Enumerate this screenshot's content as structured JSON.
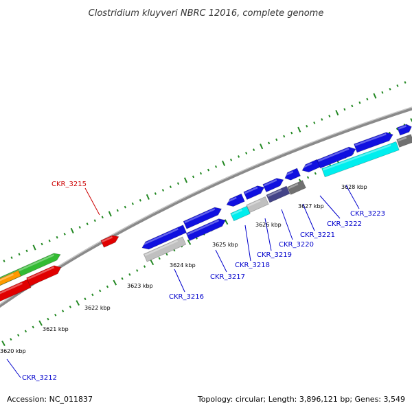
{
  "title": "Clostridium kluyveri NBRC 12016, complete genome",
  "footer": {
    "accession": "Accession: NC_011837",
    "summary": "Topology: circular; Length: 3,896,121 bp; Genes: 3,549"
  },
  "kbp_ticks": [
    "3620 kbp",
    "3621 kbp",
    "3622 kbp",
    "3623 kbp",
    "3624 kbp",
    "3625 kbp",
    "3626 kbp",
    "3627 kbp",
    "3628 kbp"
  ],
  "colors": {
    "blue": "#1010e0",
    "red": "#e00000",
    "green": "#33bb33",
    "orange": "#ff9900",
    "cyan": "#00eeee",
    "light_gray": "#c0c0c0",
    "dark_gray": "#707070",
    "slate": "#444488",
    "backbone": "#888888",
    "tick": "#228822",
    "label_blue": "#0000cc",
    "label_red": "#cc0000"
  },
  "genes": [
    {
      "label": "CKR_3212",
      "color": "blue"
    },
    {
      "label": "CKR_3215",
      "color": "red"
    },
    {
      "label": "CKR_3216",
      "color": "blue"
    },
    {
      "label": "CKR_3217",
      "color": "blue"
    },
    {
      "label": "CKR_3218",
      "color": "blue"
    },
    {
      "label": "CKR_3219",
      "color": "blue"
    },
    {
      "label": "CKR_3220",
      "color": "blue"
    },
    {
      "label": "CKR_3221",
      "color": "blue"
    },
    {
      "label": "CKR_3222",
      "color": "blue"
    },
    {
      "label": "CKR_3223",
      "color": "blue"
    }
  ]
}
